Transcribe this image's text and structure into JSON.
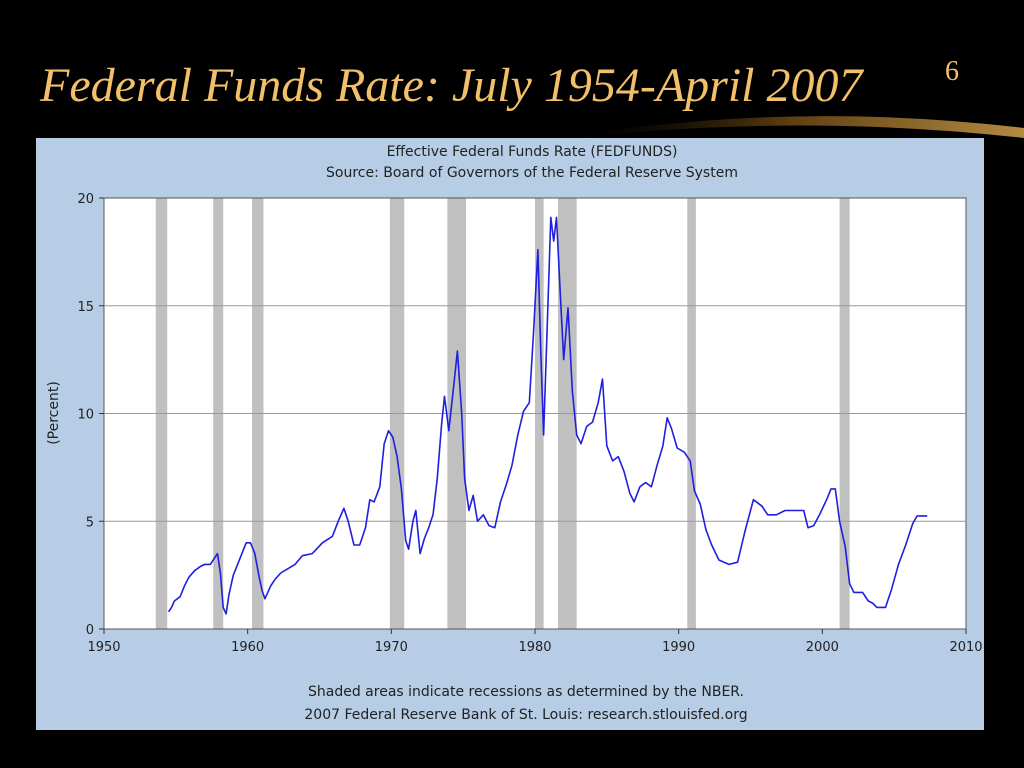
{
  "slide": {
    "title": "Federal Funds Rate: July 1954-April 2007",
    "slide_number": "6"
  },
  "chart_data": {
    "type": "line",
    "title": "Effective Federal Funds Rate (FEDFUNDS)",
    "subtitle": "Source: Board of Governors of the Federal Reserve System",
    "xlabel": "",
    "ylabel": "(Percent)",
    "xlim": [
      1950,
      2010
    ],
    "ylim": [
      0,
      20
    ],
    "xticks": [
      "1950",
      "1960",
      "1970",
      "1980",
      "1990",
      "2000",
      "2010"
    ],
    "yticks": [
      "0",
      "5",
      "10",
      "15",
      "20"
    ],
    "grid": true,
    "footnote1": "Shaded areas indicate recessions as determined by the NBER.",
    "footnote2": "2007 Federal Reserve Bank of St. Louis: research.stlouisfed.org",
    "line_color": "#1f1fe0",
    "recession_color": "#c0c0c0",
    "recessions": [
      [
        1953.6,
        1954.4
      ],
      [
        1957.6,
        1958.3
      ],
      [
        1960.3,
        1961.1
      ],
      [
        1969.9,
        1970.9
      ],
      [
        1973.9,
        1975.2
      ],
      [
        1980.0,
        1980.6
      ],
      [
        1981.6,
        1982.9
      ],
      [
        1990.6,
        1991.2
      ],
      [
        2001.2,
        2001.9
      ]
    ],
    "series": [
      {
        "values": [
          [
            1954.5,
            0.8
          ],
          [
            1954.7,
            1.0
          ],
          [
            1954.9,
            1.3
          ],
          [
            1955.3,
            1.5
          ],
          [
            1955.6,
            2.0
          ],
          [
            1955.9,
            2.4
          ],
          [
            1956.3,
            2.7
          ],
          [
            1956.7,
            2.9
          ],
          [
            1957.0,
            3.0
          ],
          [
            1957.4,
            3.0
          ],
          [
            1957.7,
            3.3
          ],
          [
            1957.9,
            3.5
          ],
          [
            1958.1,
            2.6
          ],
          [
            1958.3,
            1.0
          ],
          [
            1958.5,
            0.7
          ],
          [
            1958.7,
            1.6
          ],
          [
            1959.0,
            2.5
          ],
          [
            1959.3,
            3.0
          ],
          [
            1959.6,
            3.5
          ],
          [
            1959.9,
            4.0
          ],
          [
            1960.2,
            4.0
          ],
          [
            1960.5,
            3.5
          ],
          [
            1960.8,
            2.4
          ],
          [
            1961.0,
            1.8
          ],
          [
            1961.2,
            1.4
          ],
          [
            1961.4,
            1.7
          ],
          [
            1961.6,
            2.0
          ],
          [
            1961.9,
            2.3
          ],
          [
            1962.3,
            2.6
          ],
          [
            1962.8,
            2.8
          ],
          [
            1963.3,
            3.0
          ],
          [
            1963.8,
            3.4
          ],
          [
            1964.5,
            3.5
          ],
          [
            1965.2,
            4.0
          ],
          [
            1965.9,
            4.3
          ],
          [
            1966.3,
            5.0
          ],
          [
            1966.7,
            5.6
          ],
          [
            1967.0,
            5.0
          ],
          [
            1967.4,
            3.9
          ],
          [
            1967.8,
            3.9
          ],
          [
            1968.2,
            4.7
          ],
          [
            1968.5,
            6.0
          ],
          [
            1968.8,
            5.9
          ],
          [
            1969.2,
            6.6
          ],
          [
            1969.5,
            8.6
          ],
          [
            1969.8,
            9.2
          ],
          [
            1970.1,
            8.9
          ],
          [
            1970.4,
            8.0
          ],
          [
            1970.7,
            6.5
          ],
          [
            1971.0,
            4.1
          ],
          [
            1971.2,
            3.7
          ],
          [
            1971.5,
            5.0
          ],
          [
            1971.7,
            5.5
          ],
          [
            1972.0,
            3.5
          ],
          [
            1972.3,
            4.2
          ],
          [
            1972.6,
            4.7
          ],
          [
            1972.9,
            5.3
          ],
          [
            1973.2,
            7.0
          ],
          [
            1973.5,
            9.5
          ],
          [
            1973.7,
            10.8
          ],
          [
            1974.0,
            9.2
          ],
          [
            1974.3,
            11.0
          ],
          [
            1974.6,
            12.9
          ],
          [
            1974.9,
            10.0
          ],
          [
            1975.1,
            7.0
          ],
          [
            1975.4,
            5.5
          ],
          [
            1975.7,
            6.2
          ],
          [
            1976.0,
            5.0
          ],
          [
            1976.4,
            5.3
          ],
          [
            1976.8,
            4.8
          ],
          [
            1977.2,
            4.7
          ],
          [
            1977.6,
            5.9
          ],
          [
            1978.0,
            6.7
          ],
          [
            1978.4,
            7.6
          ],
          [
            1978.8,
            9.0
          ],
          [
            1979.2,
            10.1
          ],
          [
            1979.6,
            10.5
          ],
          [
            1979.9,
            13.8
          ],
          [
            1980.2,
            17.6
          ],
          [
            1980.4,
            13.0
          ],
          [
            1980.6,
            9.0
          ],
          [
            1980.9,
            15.0
          ],
          [
            1981.1,
            19.1
          ],
          [
            1981.3,
            18.0
          ],
          [
            1981.5,
            19.1
          ],
          [
            1981.8,
            15.0
          ],
          [
            1982.0,
            12.5
          ],
          [
            1982.3,
            14.9
          ],
          [
            1982.6,
            11.0
          ],
          [
            1982.9,
            9.0
          ],
          [
            1983.2,
            8.6
          ],
          [
            1983.6,
            9.4
          ],
          [
            1984.0,
            9.6
          ],
          [
            1984.4,
            10.5
          ],
          [
            1984.7,
            11.6
          ],
          [
            1985.0,
            8.5
          ],
          [
            1985.4,
            7.8
          ],
          [
            1985.8,
            8.0
          ],
          [
            1986.2,
            7.3
          ],
          [
            1986.6,
            6.3
          ],
          [
            1986.9,
            5.9
          ],
          [
            1987.3,
            6.6
          ],
          [
            1987.7,
            6.8
          ],
          [
            1988.1,
            6.6
          ],
          [
            1988.5,
            7.6
          ],
          [
            1988.9,
            8.5
          ],
          [
            1989.2,
            9.8
          ],
          [
            1989.5,
            9.3
          ],
          [
            1989.9,
            8.4
          ],
          [
            1990.4,
            8.2
          ],
          [
            1990.8,
            7.8
          ],
          [
            1991.1,
            6.4
          ],
          [
            1991.5,
            5.8
          ],
          [
            1991.9,
            4.6
          ],
          [
            1992.3,
            3.9
          ],
          [
            1992.8,
            3.2
          ],
          [
            1993.5,
            3.0
          ],
          [
            1994.1,
            3.1
          ],
          [
            1994.6,
            4.5
          ],
          [
            1995.2,
            6.0
          ],
          [
            1995.8,
            5.7
          ],
          [
            1996.2,
            5.3
          ],
          [
            1996.8,
            5.3
          ],
          [
            1997.4,
            5.5
          ],
          [
            1998.2,
            5.5
          ],
          [
            1998.7,
            5.5
          ],
          [
            1999.0,
            4.7
          ],
          [
            1999.4,
            4.8
          ],
          [
            1999.8,
            5.3
          ],
          [
            2000.3,
            6.0
          ],
          [
            2000.6,
            6.5
          ],
          [
            2000.9,
            6.5
          ],
          [
            2001.2,
            5.0
          ],
          [
            2001.6,
            3.8
          ],
          [
            2001.9,
            2.1
          ],
          [
            2002.2,
            1.7
          ],
          [
            2002.8,
            1.7
          ],
          [
            2003.2,
            1.3
          ],
          [
            2003.5,
            1.2
          ],
          [
            2003.8,
            1.0
          ],
          [
            2004.4,
            1.0
          ],
          [
            2004.8,
            1.8
          ],
          [
            2005.3,
            3.0
          ],
          [
            2005.8,
            3.9
          ],
          [
            2006.3,
            4.9
          ],
          [
            2006.6,
            5.25
          ],
          [
            2007.3,
            5.25
          ]
        ]
      }
    ]
  }
}
